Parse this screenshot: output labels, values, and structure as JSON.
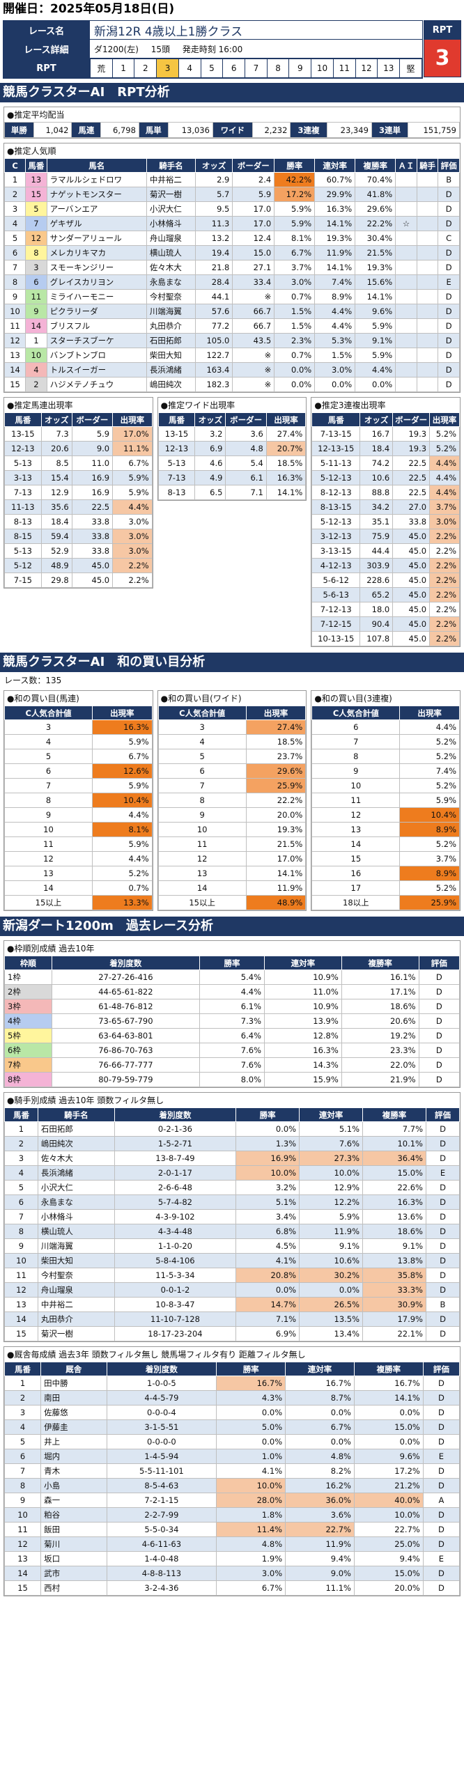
{
  "header": {
    "date_label": "開催日：2025年05月18日(日)"
  },
  "race": {
    "name_label": "レース名",
    "name": "新潟12R 4歳以上1勝クラス",
    "detail_label": "レース詳細",
    "course": "ダ1200(左)",
    "runners": "15頭",
    "start": "発走時刻 16:00",
    "rpt_label": "RPT",
    "rpt_cells": [
      "荒",
      "1",
      "2",
      "3",
      "4",
      "5",
      "6",
      "7",
      "8",
      "9",
      "10",
      "11",
      "12",
      "13",
      "堅"
    ],
    "rpt_highlight": "3",
    "rpt_box_label": "RPT",
    "rpt_value": "3"
  },
  "section1": {
    "title": "競馬クラスターAI　RPT分析"
  },
  "payout": {
    "title": "●推定平均配当",
    "items": [
      {
        "k": "単勝",
        "v": "1,042"
      },
      {
        "k": "馬連",
        "v": "6,798"
      },
      {
        "k": "馬単",
        "v": "13,036"
      },
      {
        "k": "ワイド",
        "v": "2,232"
      },
      {
        "k": "3連複",
        "v": "23,349"
      },
      {
        "k": "3連単",
        "v": "151,759"
      }
    ]
  },
  "popularity": {
    "title": "●推定人気順",
    "headers": [
      "C",
      "馬番",
      "馬名",
      "騎手名",
      "オッズ",
      "ボーダー",
      "勝率",
      "連対率",
      "複勝率",
      "ＡＩ",
      "騎手",
      "評価"
    ],
    "rows": [
      {
        "c": "1",
        "no": "13",
        "name": "ラマルルシェドロワ",
        "jockey": "中井裕二",
        "odds": "2.9",
        "border": "2.4",
        "win": "42.2%",
        "ren": "60.7%",
        "fuku": "70.4%",
        "ai": "",
        "jk": "",
        "ev": "B",
        "w": "w8"
      },
      {
        "c": "2",
        "no": "15",
        "name": "ナゲットモンスター",
        "jockey": "菊沢一樹",
        "odds": "5.7",
        "border": "5.9",
        "win": "17.2%",
        "ren": "29.9%",
        "fuku": "41.8%",
        "ai": "",
        "jk": "",
        "ev": "D",
        "w": "w8"
      },
      {
        "c": "3",
        "no": "5",
        "name": "アーバンエア",
        "jockey": "小沢大仁",
        "odds": "9.5",
        "border": "17.0",
        "win": "5.9%",
        "ren": "16.3%",
        "fuku": "29.6%",
        "ai": "",
        "jk": "",
        "ev": "D",
        "w": "w5"
      },
      {
        "c": "4",
        "no": "7",
        "name": "ゲキザル",
        "jockey": "小林脩斗",
        "odds": "11.3",
        "border": "17.0",
        "win": "5.9%",
        "ren": "14.1%",
        "fuku": "22.2%",
        "ai": "☆",
        "jk": "",
        "ev": "D",
        "w": "w4"
      },
      {
        "c": "5",
        "no": "12",
        "name": "サンダーアリュール",
        "jockey": "舟山瑠泉",
        "odds": "13.2",
        "border": "12.4",
        "win": "8.1%",
        "ren": "19.3%",
        "fuku": "30.4%",
        "ai": "",
        "jk": "",
        "ev": "C",
        "w": "w7"
      },
      {
        "c": "6",
        "no": "8",
        "name": "メレカリキマカ",
        "jockey": "横山琉人",
        "odds": "19.4",
        "border": "15.0",
        "win": "6.7%",
        "ren": "11.9%",
        "fuku": "21.5%",
        "ai": "",
        "jk": "",
        "ev": "D",
        "w": "w5"
      },
      {
        "c": "7",
        "no": "3",
        "name": "スモーキンジリー",
        "jockey": "佐々木大",
        "odds": "21.8",
        "border": "27.1",
        "win": "3.7%",
        "ren": "14.1%",
        "fuku": "19.3%",
        "ai": "",
        "jk": "",
        "ev": "D",
        "w": "w2"
      },
      {
        "c": "8",
        "no": "6",
        "name": "グレイスカリヨン",
        "jockey": "永島まな",
        "odds": "28.4",
        "border": "33.4",
        "win": "3.0%",
        "ren": "7.4%",
        "fuku": "15.6%",
        "ai": "",
        "jk": "",
        "ev": "E",
        "w": "w4"
      },
      {
        "c": "9",
        "no": "11",
        "name": "ミライハーモニー",
        "jockey": "今村聖奈",
        "odds": "44.1",
        "border": "※",
        "win": "0.7%",
        "ren": "8.9%",
        "fuku": "14.1%",
        "ai": "",
        "jk": "",
        "ev": "D",
        "w": "w6"
      },
      {
        "c": "10",
        "no": "9",
        "name": "ピクラリーダ",
        "jockey": "川端海翼",
        "odds": "57.6",
        "border": "66.7",
        "win": "1.5%",
        "ren": "4.4%",
        "fuku": "9.6%",
        "ai": "",
        "jk": "",
        "ev": "D",
        "w": "w6"
      },
      {
        "c": "11",
        "no": "14",
        "name": "ブリスフル",
        "jockey": "丸田恭介",
        "odds": "77.2",
        "border": "66.7",
        "win": "1.5%",
        "ren": "4.4%",
        "fuku": "5.9%",
        "ai": "",
        "jk": "",
        "ev": "D",
        "w": "w8"
      },
      {
        "c": "12",
        "no": "1",
        "name": "スターチスブーケ",
        "jockey": "石田拓郎",
        "odds": "105.0",
        "border": "43.5",
        "win": "2.3%",
        "ren": "5.3%",
        "fuku": "9.1%",
        "ai": "",
        "jk": "",
        "ev": "D",
        "w": "w1"
      },
      {
        "c": "13",
        "no": "10",
        "name": "バンブトンブロ",
        "jockey": "柴田大知",
        "odds": "122.7",
        "border": "※",
        "win": "0.7%",
        "ren": "1.5%",
        "fuku": "5.9%",
        "ai": "",
        "jk": "",
        "ev": "D",
        "w": "w6"
      },
      {
        "c": "14",
        "no": "4",
        "name": "トルスイーガー",
        "jockey": "長浜鴻緒",
        "odds": "163.4",
        "border": "※",
        "win": "0.0%",
        "ren": "3.0%",
        "fuku": "4.4%",
        "ai": "",
        "jk": "",
        "ev": "D",
        "w": "w3"
      },
      {
        "c": "15",
        "no": "2",
        "name": "ハジメテノチュウ",
        "jockey": "嶋田純次",
        "odds": "182.3",
        "border": "※",
        "win": "0.0%",
        "ren": "0.0%",
        "fuku": "0.0%",
        "ai": "",
        "jk": "",
        "ev": "D",
        "w": "w2"
      }
    ]
  },
  "umaren": {
    "title": "●推定馬連出現率",
    "headers": [
      "馬番",
      "オッズ",
      "ボーダー",
      "出現率"
    ],
    "rows": [
      [
        "13-15",
        "7.3",
        "5.9",
        "17.0%"
      ],
      [
        "12-13",
        "20.6",
        "9.0",
        "11.1%"
      ],
      [
        "5-13",
        "8.5",
        "11.0",
        "6.7%"
      ],
      [
        "3-13",
        "15.4",
        "16.9",
        "5.9%"
      ],
      [
        "7-13",
        "12.9",
        "16.9",
        "5.9%"
      ],
      [
        "11-13",
        "35.6",
        "22.5",
        "4.4%"
      ],
      [
        "8-13",
        "18.4",
        "33.8",
        "3.0%"
      ],
      [
        "8-15",
        "59.4",
        "33.8",
        "3.0%"
      ],
      [
        "5-13",
        "52.9",
        "33.8",
        "3.0%"
      ],
      [
        "5-12",
        "48.9",
        "45.0",
        "2.2%"
      ],
      [
        "7-15",
        "29.8",
        "45.0",
        "2.2%"
      ]
    ]
  },
  "wide": {
    "title": "●推定ワイド出現率",
    "headers": [
      "馬番",
      "オッズ",
      "ボーダー",
      "出現率"
    ],
    "rows": [
      [
        "13-15",
        "3.2",
        "3.6",
        "27.4%"
      ],
      [
        "12-13",
        "6.9",
        "4.8",
        "20.7%"
      ],
      [
        "5-13",
        "4.6",
        "5.4",
        "18.5%"
      ],
      [
        "7-13",
        "4.9",
        "6.1",
        "16.3%"
      ],
      [
        "8-13",
        "6.5",
        "7.1",
        "14.1%"
      ]
    ]
  },
  "sanrenpuku": {
    "title": "●推定3連複出現率",
    "headers": [
      "馬番",
      "オッズ",
      "ボーダー",
      "出現率"
    ],
    "rows": [
      [
        "7-13-15",
        "16.7",
        "19.3",
        "5.2%"
      ],
      [
        "12-13-15",
        "18.4",
        "19.3",
        "5.2%"
      ],
      [
        "5-11-13",
        "74.2",
        "22.5",
        "4.4%"
      ],
      [
        "5-12-13",
        "10.6",
        "22.5",
        "4.4%"
      ],
      [
        "8-12-13",
        "88.8",
        "22.5",
        "4.4%"
      ],
      [
        "8-13-15",
        "34.2",
        "27.0",
        "3.7%"
      ],
      [
        "5-12-13",
        "35.1",
        "33.8",
        "3.0%"
      ],
      [
        "3-12-13",
        "75.9",
        "45.0",
        "2.2%"
      ],
      [
        "3-13-15",
        "44.4",
        "45.0",
        "2.2%"
      ],
      [
        "4-12-13",
        "303.9",
        "45.0",
        "2.2%"
      ],
      [
        "5-6-12",
        "228.6",
        "45.0",
        "2.2%"
      ],
      [
        "5-6-13",
        "65.2",
        "45.0",
        "2.2%"
      ],
      [
        "7-12-13",
        "18.0",
        "45.0",
        "2.2%"
      ],
      [
        "7-12-15",
        "90.4",
        "45.0",
        "2.2%"
      ],
      [
        "10-13-15",
        "107.8",
        "45.0",
        "2.2%"
      ]
    ]
  },
  "section2": {
    "title": "競馬クラスターAI　和の買い目分析",
    "count": "レース数：135"
  },
  "wa_umaren": {
    "title": "●和の買い目(馬連)",
    "h1": "C人気合計値",
    "h2": "出現率",
    "rows": [
      [
        "3",
        "16.3%"
      ],
      [
        "4",
        "5.9%"
      ],
      [
        "5",
        "6.7%"
      ],
      [
        "6",
        "12.6%"
      ],
      [
        "7",
        "5.9%"
      ],
      [
        "8",
        "10.4%"
      ],
      [
        "9",
        "4.4%"
      ],
      [
        "10",
        "8.1%"
      ],
      [
        "11",
        "5.9%"
      ],
      [
        "12",
        "4.4%"
      ],
      [
        "13",
        "5.2%"
      ],
      [
        "14",
        "0.7%"
      ],
      [
        "15以上",
        "13.3%"
      ]
    ]
  },
  "wa_wide": {
    "title": "●和の買い目(ワイド)",
    "h1": "C人気合計値",
    "h2": "出現率",
    "rows": [
      [
        "3",
        "27.4%"
      ],
      [
        "4",
        "18.5%"
      ],
      [
        "5",
        "23.7%"
      ],
      [
        "6",
        "29.6%"
      ],
      [
        "7",
        "25.9%"
      ],
      [
        "8",
        "22.2%"
      ],
      [
        "9",
        "20.0%"
      ],
      [
        "10",
        "19.3%"
      ],
      [
        "11",
        "21.5%"
      ],
      [
        "12",
        "17.0%"
      ],
      [
        "13",
        "14.1%"
      ],
      [
        "14",
        "11.9%"
      ],
      [
        "15以上",
        "48.9%"
      ]
    ]
  },
  "wa_sanren": {
    "title": "●和の買い目(3連複)",
    "h1": "C人気合計値",
    "h2": "出現率",
    "rows": [
      [
        "6",
        "4.4%"
      ],
      [
        "7",
        "5.2%"
      ],
      [
        "8",
        "5.2%"
      ],
      [
        "9",
        "7.4%"
      ],
      [
        "10",
        "5.2%"
      ],
      [
        "11",
        "5.9%"
      ],
      [
        "12",
        "10.4%"
      ],
      [
        "13",
        "8.9%"
      ],
      [
        "14",
        "5.2%"
      ],
      [
        "15",
        "3.7%"
      ],
      [
        "16",
        "8.9%"
      ],
      [
        "17",
        "5.2%"
      ],
      [
        "18以上",
        "25.9%"
      ]
    ]
  },
  "section3": {
    "title": "新潟ダート1200m　過去レース分析"
  },
  "waku": {
    "title": "●枠順別成績 過去10年",
    "headers": [
      "枠順",
      "着別度数",
      "勝率",
      "連対率",
      "複勝率",
      "評価"
    ],
    "rows": [
      [
        "1枠",
        "27-27-26-416",
        "5.4%",
        "10.9%",
        "16.1%",
        "D",
        "w1"
      ],
      [
        "2枠",
        "44-65-61-822",
        "4.4%",
        "11.0%",
        "17.1%",
        "D",
        "w2"
      ],
      [
        "3枠",
        "61-48-76-812",
        "6.1%",
        "10.9%",
        "18.6%",
        "D",
        "w3"
      ],
      [
        "4枠",
        "73-65-67-790",
        "7.3%",
        "13.9%",
        "20.6%",
        "D",
        "w4"
      ],
      [
        "5枠",
        "63-64-63-801",
        "6.4%",
        "12.8%",
        "19.2%",
        "D",
        "w5"
      ],
      [
        "6枠",
        "76-86-70-763",
        "7.6%",
        "16.3%",
        "23.3%",
        "D",
        "w6"
      ],
      [
        "7枠",
        "76-66-77-777",
        "7.6%",
        "14.3%",
        "22.0%",
        "D",
        "w7"
      ],
      [
        "8枠",
        "80-79-59-779",
        "8.0%",
        "15.9%",
        "21.9%",
        "D",
        "w8"
      ]
    ]
  },
  "jockey": {
    "title": "●騎手別成績 過去10年 頭数フィルタ無し",
    "headers": [
      "馬番",
      "騎手名",
      "着別度数",
      "勝率",
      "連対率",
      "複勝率",
      "評価"
    ],
    "rows": [
      [
        "1",
        "石田拓郎",
        "0-2-1-36",
        "0.0%",
        "5.1%",
        "7.7%",
        "D"
      ],
      [
        "2",
        "嶋田純次",
        "1-5-2-71",
        "1.3%",
        "7.6%",
        "10.1%",
        "D"
      ],
      [
        "3",
        "佐々木大",
        "13-8-7-49",
        "16.9%",
        "27.3%",
        "36.4%",
        "D"
      ],
      [
        "4",
        "長浜鴻緒",
        "2-0-1-17",
        "10.0%",
        "10.0%",
        "15.0%",
        "E"
      ],
      [
        "5",
        "小沢大仁",
        "2-6-6-48",
        "3.2%",
        "12.9%",
        "22.6%",
        "D"
      ],
      [
        "6",
        "永島まな",
        "5-7-4-82",
        "5.1%",
        "12.2%",
        "16.3%",
        "D"
      ],
      [
        "7",
        "小林脩斗",
        "4-3-9-102",
        "3.4%",
        "5.9%",
        "13.6%",
        "D"
      ],
      [
        "8",
        "横山琉人",
        "4-3-4-48",
        "6.8%",
        "11.9%",
        "18.6%",
        "D"
      ],
      [
        "9",
        "川端海翼",
        "1-1-0-20",
        "4.5%",
        "9.1%",
        "9.1%",
        "D"
      ],
      [
        "10",
        "柴田大知",
        "5-8-4-106",
        "4.1%",
        "10.6%",
        "13.8%",
        "D"
      ],
      [
        "11",
        "今村聖奈",
        "11-5-3-34",
        "20.8%",
        "30.2%",
        "35.8%",
        "D"
      ],
      [
        "12",
        "舟山瑠泉",
        "0-0-1-2",
        "0.0%",
        "0.0%",
        "33.3%",
        "D"
      ],
      [
        "13",
        "中井裕二",
        "10-8-3-47",
        "14.7%",
        "26.5%",
        "30.9%",
        "B"
      ],
      [
        "14",
        "丸田恭介",
        "11-10-7-128",
        "7.1%",
        "13.5%",
        "17.9%",
        "D"
      ],
      [
        "15",
        "菊沢一樹",
        "18-17-23-204",
        "6.9%",
        "13.4%",
        "22.1%",
        "D"
      ]
    ]
  },
  "trainer": {
    "title": "●厩舎毎成績 過去3年 頭数フィルタ無し 競馬場フィルタ有り 距離フィルタ無し",
    "headers": [
      "馬番",
      "厩舎",
      "着別度数",
      "勝率",
      "連対率",
      "複勝率",
      "評価"
    ],
    "rows": [
      [
        "1",
        "田中勝",
        "1-0-0-5",
        "16.7%",
        "16.7%",
        "16.7%",
        "D"
      ],
      [
        "2",
        "南田",
        "4-4-5-79",
        "4.3%",
        "8.7%",
        "14.1%",
        "D"
      ],
      [
        "3",
        "佐藤悠",
        "0-0-0-4",
        "0.0%",
        "0.0%",
        "0.0%",
        "D"
      ],
      [
        "4",
        "伊藤圭",
        "3-1-5-51",
        "5.0%",
        "6.7%",
        "15.0%",
        "D"
      ],
      [
        "5",
        "井上",
        "0-0-0-0",
        "0.0%",
        "0.0%",
        "0.0%",
        "D"
      ],
      [
        "6",
        "堀内",
        "1-4-5-94",
        "1.0%",
        "4.8%",
        "9.6%",
        "E"
      ],
      [
        "7",
        "青木",
        "5-5-11-101",
        "4.1%",
        "8.2%",
        "17.2%",
        "D"
      ],
      [
        "8",
        "小島",
        "8-5-4-63",
        "10.0%",
        "16.2%",
        "21.2%",
        "D"
      ],
      [
        "9",
        "森一",
        "7-2-1-15",
        "28.0%",
        "36.0%",
        "40.0%",
        "A"
      ],
      [
        "10",
        "粕谷",
        "2-2-7-99",
        "1.8%",
        "3.6%",
        "10.0%",
        "D"
      ],
      [
        "11",
        "飯田",
        "5-5-0-34",
        "11.4%",
        "22.7%",
        "22.7%",
        "D"
      ],
      [
        "12",
        "菊川",
        "4-6-11-63",
        "4.8%",
        "11.9%",
        "25.0%",
        "D"
      ],
      [
        "13",
        "坂口",
        "1-4-0-48",
        "1.9%",
        "9.4%",
        "9.4%",
        "E"
      ],
      [
        "14",
        "武市",
        "4-8-8-113",
        "3.0%",
        "9.0%",
        "15.0%",
        "D"
      ],
      [
        "15",
        "西村",
        "3-2-4-36",
        "6.7%",
        "11.1%",
        "20.0%",
        "D"
      ]
    ]
  },
  "colors": {
    "navy": "#1f3864",
    "accent_red": "#e03a2e",
    "highlight_orange": "#ee7c1e",
    "highlight_peach": "#f6c7a4",
    "rpt_yellow": "#f5c542"
  }
}
